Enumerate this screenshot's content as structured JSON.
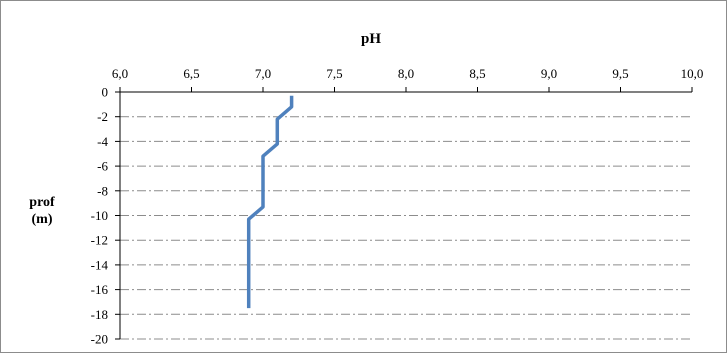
{
  "chart_data": {
    "type": "line",
    "title": "pH",
    "xlabel": "pH",
    "ylabel_line1": "prof",
    "ylabel_line2": "(m)",
    "x_axis_position": "top",
    "xlim": [
      6.0,
      10.0
    ],
    "ylim": [
      -20,
      0
    ],
    "x_ticks": [
      "6,0",
      "6,5",
      "7,0",
      "7,5",
      "8,0",
      "8,5",
      "9,0",
      "9,5",
      "10,0"
    ],
    "x_tick_values": [
      6.0,
      6.5,
      7.0,
      7.5,
      8.0,
      8.5,
      9.0,
      9.5,
      10.0
    ],
    "y_ticks": [
      "0",
      "-2",
      "-4",
      "-6",
      "-8",
      "-10",
      "-12",
      "-14",
      "-16",
      "-18",
      "-20"
    ],
    "y_tick_values": [
      0,
      -2,
      -4,
      -6,
      -8,
      -10,
      -12,
      -14,
      -16,
      -18,
      -20
    ],
    "gridlines": "horizontal dash-dot",
    "series": [
      {
        "color": "#4f81bd",
        "points": [
          [
            7.2,
            -0.3
          ],
          [
            7.2,
            -1.2
          ],
          [
            7.1,
            -2.2
          ],
          [
            7.1,
            -4.2
          ],
          [
            7.0,
            -5.2
          ],
          [
            7.0,
            -9.3
          ],
          [
            6.9,
            -10.3
          ],
          [
            6.9,
            -17.5
          ]
        ]
      }
    ]
  }
}
